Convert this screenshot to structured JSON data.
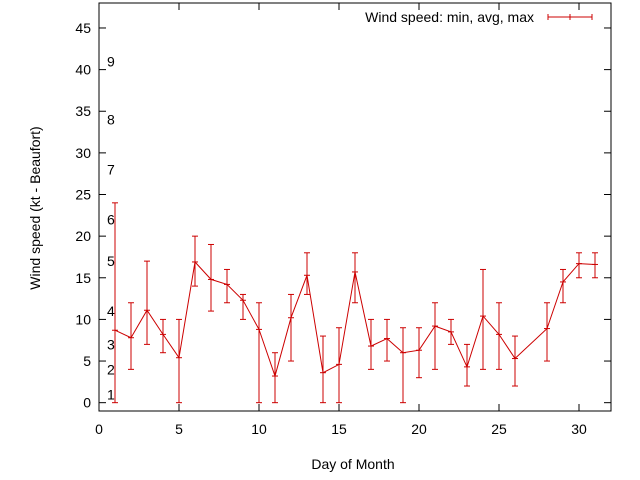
{
  "chart_data": {
    "type": "line",
    "title": "",
    "xlabel": "Day of Month",
    "ylabel": "Wind speed (kt - Beaufort)",
    "xlim": [
      0,
      32
    ],
    "ylim": [
      -1,
      48
    ],
    "xticks": [
      0,
      5,
      10,
      15,
      20,
      25,
      30
    ],
    "yticks": [
      0,
      5,
      10,
      15,
      20,
      25,
      30,
      35,
      40,
      45
    ],
    "grid": false,
    "legend_position": "top-right",
    "series_color": "#cc0000",
    "beaufort_scale": [
      {
        "label": "1",
        "value": 1
      },
      {
        "label": "2",
        "value": 4
      },
      {
        "label": "3",
        "value": 7
      },
      {
        "label": "4",
        "value": 11
      },
      {
        "label": "5",
        "value": 17
      },
      {
        "label": "6",
        "value": 22
      },
      {
        "label": "7",
        "value": 28
      },
      {
        "label": "8",
        "value": 34
      },
      {
        "label": "9",
        "value": 41
      }
    ],
    "series": [
      {
        "name": "Wind speed: min, avg, max",
        "points": [
          {
            "x": 1,
            "avg": 8.7,
            "min": 0,
            "max": 24
          },
          {
            "x": 2,
            "avg": 7.8,
            "min": 4,
            "max": 12
          },
          {
            "x": 3,
            "avg": 11.1,
            "min": 7,
            "max": 17
          },
          {
            "x": 4,
            "avg": 8.2,
            "min": 6,
            "max": 10
          },
          {
            "x": 5,
            "avg": 5.4,
            "min": 0,
            "max": 10
          },
          {
            "x": 6,
            "avg": 16.9,
            "min": 14,
            "max": 20
          },
          {
            "x": 7,
            "avg": 14.8,
            "min": 11,
            "max": 19
          },
          {
            "x": 8,
            "avg": 14.2,
            "min": 12,
            "max": 16
          },
          {
            "x": 9,
            "avg": 12.3,
            "min": 10,
            "max": 13
          },
          {
            "x": 10,
            "avg": 8.8,
            "min": 0,
            "max": 12
          },
          {
            "x": 11,
            "avg": 3.2,
            "min": 0,
            "max": 6
          },
          {
            "x": 12,
            "avg": 10.2,
            "min": 5,
            "max": 13
          },
          {
            "x": 13,
            "avg": 15.3,
            "min": 13,
            "max": 18
          },
          {
            "x": 14,
            "avg": 3.6,
            "min": 0,
            "max": 8
          },
          {
            "x": 15,
            "avg": 4.6,
            "min": 0,
            "max": 9
          },
          {
            "x": 16,
            "avg": 15.7,
            "min": 12,
            "max": 18
          },
          {
            "x": 17,
            "avg": 6.8,
            "min": 4,
            "max": 10
          },
          {
            "x": 18,
            "avg": 7.7,
            "min": 5,
            "max": 10
          },
          {
            "x": 19,
            "avg": 6.0,
            "min": 0,
            "max": 9
          },
          {
            "x": 20,
            "avg": 6.3,
            "min": 3,
            "max": 9
          },
          {
            "x": 21,
            "avg": 9.2,
            "min": 4,
            "max": 12
          },
          {
            "x": 22,
            "avg": 8.5,
            "min": 7,
            "max": 10
          },
          {
            "x": 23,
            "avg": 4.3,
            "min": 2,
            "max": 7
          },
          {
            "x": 24,
            "avg": 10.4,
            "min": 4,
            "max": 16
          },
          {
            "x": 25,
            "avg": 8.2,
            "min": 4,
            "max": 12
          },
          {
            "x": 26,
            "avg": 5.3,
            "min": 2,
            "max": 8
          },
          {
            "x": 28,
            "avg": 8.9,
            "min": 5,
            "max": 12
          },
          {
            "x": 29,
            "avg": 14.5,
            "min": 12,
            "max": 16
          },
          {
            "x": 30,
            "avg": 16.7,
            "min": 15,
            "max": 18
          },
          {
            "x": 31,
            "avg": 16.6,
            "min": 15,
            "max": 18
          }
        ]
      }
    ]
  }
}
